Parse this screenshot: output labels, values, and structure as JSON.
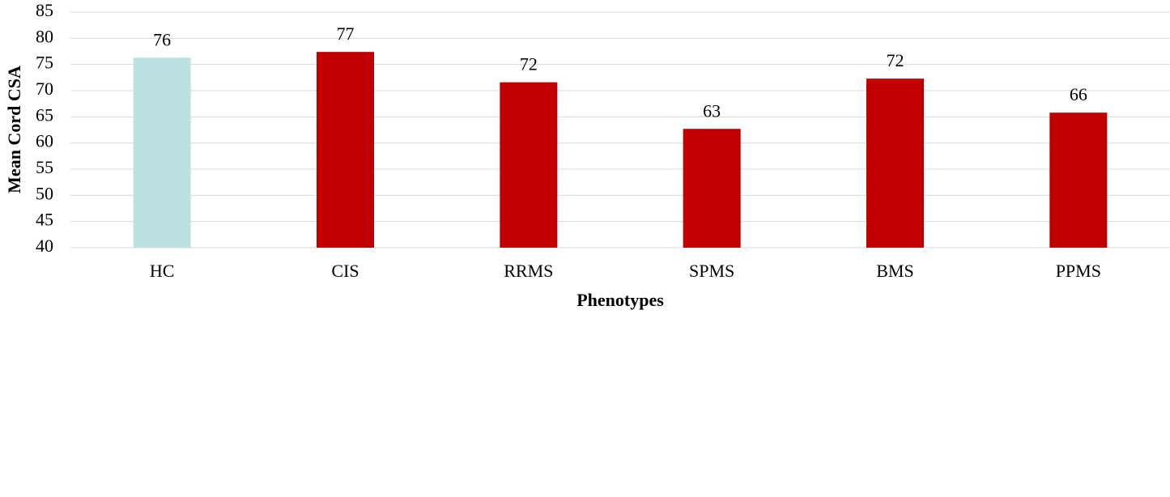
{
  "chart_data": {
    "type": "bar",
    "x_label": "Phenotypes",
    "y_label": "Mean Cord CSA",
    "categories": [
      "HC",
      "CIS",
      "RRMS",
      "SPMS",
      "BMS",
      "PPMS"
    ],
    "values": [
      76.3,
      77.4,
      71.6,
      62.7,
      72.3,
      65.8
    ],
    "value_labels": [
      "76",
      "77",
      "72",
      "63",
      "72",
      "66"
    ],
    "colors": [
      "#bde0e3",
      "#c00000",
      "#c00000",
      "#c00000",
      "#c00000",
      "#c00000"
    ],
    "ylim": [
      40,
      85
    ],
    "yticks": [
      40,
      45,
      50,
      55,
      60,
      65,
      70,
      75,
      80,
      85
    ],
    "grid": true
  }
}
